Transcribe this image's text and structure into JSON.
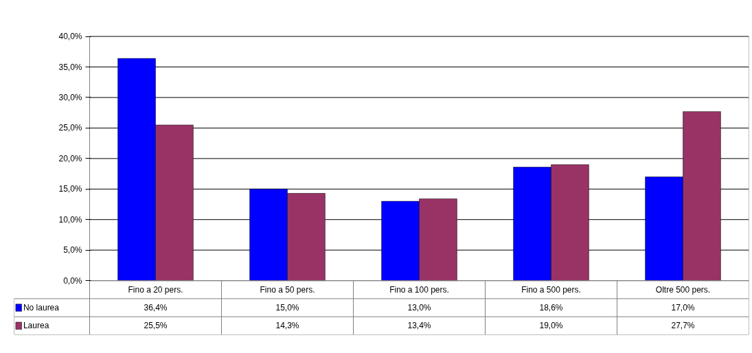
{
  "chart_data": {
    "type": "bar",
    "categories": [
      "Fino a 20 pers.",
      "Fino a 50 pers.",
      "Fino a 100 pers.",
      "Fino a 500 pers.",
      "Oltre 500 pers."
    ],
    "series": [
      {
        "name": "No laurea",
        "color": "#0000ff",
        "values": [
          36.4,
          15.0,
          13.0,
          18.6,
          17.0
        ],
        "value_labels": [
          "36,4%",
          "15,0%",
          "13,0%",
          "18,6%",
          "17,0%"
        ]
      },
      {
        "name": "Laurea",
        "color": "#993366",
        "values": [
          25.5,
          14.3,
          13.4,
          19.0,
          27.7
        ],
        "value_labels": [
          "25,5%",
          "14,3%",
          "13,4%",
          "19,0%",
          "27,7%"
        ]
      }
    ],
    "ylim": [
      0,
      40
    ],
    "yticks": [
      {
        "value": 0,
        "label": "0,0%"
      },
      {
        "value": 5,
        "label": "5,0%"
      },
      {
        "value": 10,
        "label": "10,0%"
      },
      {
        "value": 15,
        "label": "15,0%"
      },
      {
        "value": 20,
        "label": "20,0%"
      },
      {
        "value": 25,
        "label": "25,0%"
      },
      {
        "value": 30,
        "label": "30,0%"
      },
      {
        "value": 35,
        "label": "35,0%"
      },
      {
        "value": 40,
        "label": "40,0%"
      }
    ],
    "grid": "y",
    "legend": "bottom"
  }
}
